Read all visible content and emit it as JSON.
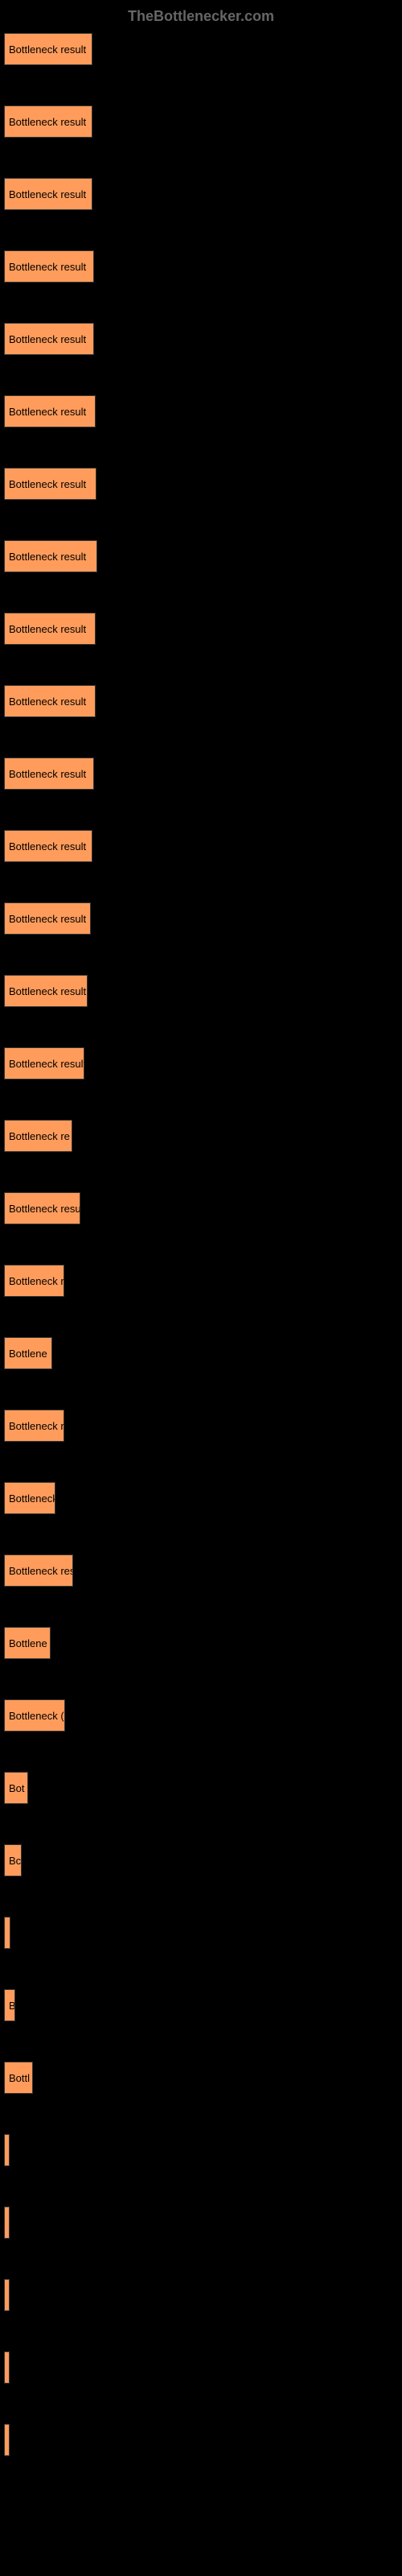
{
  "header": {
    "title": "TheBottlenecker.com"
  },
  "chart": {
    "type": "bar",
    "orientation": "horizontal",
    "bar_color": "#ff9c5b",
    "bar_border_color": "#333333",
    "background_color": "#000000",
    "label_color": "#000000",
    "label_fontsize": 13,
    "max_width": 490,
    "bars": [
      {
        "label": "Bottleneck result",
        "width": 110
      },
      {
        "label": "Bottleneck result",
        "width": 110
      },
      {
        "label": "Bottleneck result",
        "width": 110
      },
      {
        "label": "Bottleneck result",
        "width": 112
      },
      {
        "label": "Bottleneck result",
        "width": 112
      },
      {
        "label": "Bottleneck result",
        "width": 114
      },
      {
        "label": "Bottleneck result",
        "width": 115
      },
      {
        "label": "Bottleneck result",
        "width": 116
      },
      {
        "label": "Bottleneck result",
        "width": 114
      },
      {
        "label": "Bottleneck result",
        "width": 114
      },
      {
        "label": "Bottleneck result",
        "width": 112
      },
      {
        "label": "Bottleneck result",
        "width": 110
      },
      {
        "label": "Bottleneck result",
        "width": 108
      },
      {
        "label": "Bottleneck result",
        "width": 104
      },
      {
        "label": "Bottleneck result",
        "width": 100
      },
      {
        "label": "Bottleneck re",
        "width": 85
      },
      {
        "label": "Bottleneck result",
        "width": 95
      },
      {
        "label": "Bottleneck r",
        "width": 75
      },
      {
        "label": "Bottlene",
        "width": 60
      },
      {
        "label": "Bottleneck r",
        "width": 75
      },
      {
        "label": "Bottleneck",
        "width": 64
      },
      {
        "label": "Bottleneck res",
        "width": 86
      },
      {
        "label": "Bottlene",
        "width": 58
      },
      {
        "label": "Bottleneck (",
        "width": 76
      },
      {
        "label": "Bot",
        "width": 30
      },
      {
        "label": "Bc",
        "width": 22
      },
      {
        "label": "",
        "width": 8
      },
      {
        "label": "B",
        "width": 14
      },
      {
        "label": "Bottl",
        "width": 36
      },
      {
        "label": "",
        "width": 5
      },
      {
        "label": "",
        "width": 4
      },
      {
        "label": "",
        "width": 3
      },
      {
        "label": "",
        "width": 3
      },
      {
        "label": "",
        "width": 3
      }
    ]
  }
}
